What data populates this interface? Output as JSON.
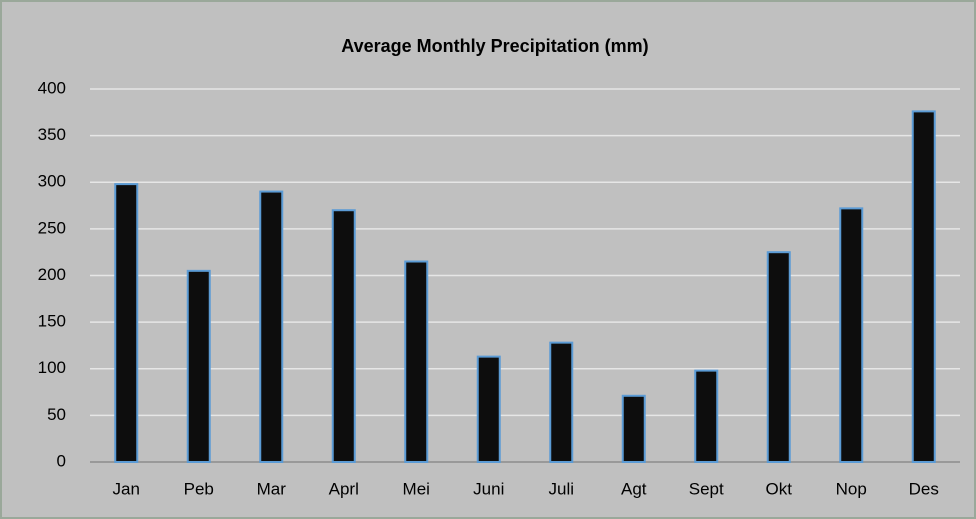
{
  "chart_data": {
    "type": "bar",
    "title": "Average Monthly Precipitation (mm)",
    "categories": [
      "Jan",
      "Peb",
      "Mar",
      "Aprl",
      "Mei",
      "Juni",
      "Juli",
      "Agt",
      "Sept",
      "Okt",
      "Nop",
      "Des"
    ],
    "values": [
      298,
      205,
      290,
      270,
      215,
      113,
      128,
      71,
      98,
      225,
      272,
      376
    ],
    "color": "#0d0d0d",
    "ylim": [
      0,
      400
    ],
    "yticks": [
      0,
      50,
      100,
      150,
      200,
      250,
      300,
      350,
      400
    ],
    "grid": true
  }
}
